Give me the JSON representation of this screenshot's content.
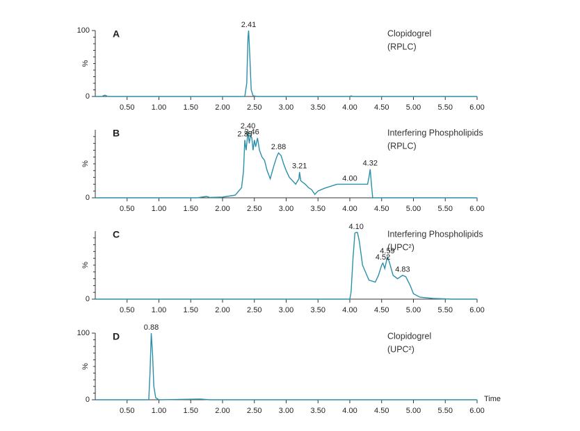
{
  "chart_data": [
    {
      "type": "line",
      "panel_label": "A",
      "title": [
        "Clopidogrel",
        "(RPLC)"
      ],
      "ylabel": "%",
      "color": "#2a8fa8",
      "xlim": [
        0,
        6
      ],
      "ylim": [
        0,
        100
      ],
      "yticks": [
        0,
        100
      ],
      "xticks": [
        {
          "value": 0.5,
          "label": "0.50"
        },
        {
          "value": 1,
          "label": "1.00"
        },
        {
          "value": 1.5,
          "label": "1.50"
        },
        {
          "value": 2,
          "label": "2.00"
        },
        {
          "value": 2.5,
          "label": "2.50"
        },
        {
          "value": 3,
          "label": "3.00"
        },
        {
          "value": 3.5,
          "label": "3.50"
        },
        {
          "value": 4,
          "label": "4.00"
        },
        {
          "value": 4.5,
          "label": "4.50"
        },
        {
          "value": 5,
          "label": "5.00"
        },
        {
          "value": 5.5,
          "label": "5.50"
        },
        {
          "value": 6,
          "label": "6.00"
        }
      ],
      "x": [
        0,
        0.1,
        0.15,
        0.2,
        1.0,
        2.0,
        2.35,
        2.38,
        2.4,
        2.41,
        2.43,
        2.45,
        2.48,
        2.55,
        3.0,
        3.5,
        4.0,
        4.02,
        4.05,
        5.0,
        6.0
      ],
      "values": [
        0,
        0,
        2,
        0,
        0,
        0,
        0,
        20,
        90,
        100,
        60,
        10,
        1,
        0,
        0,
        0,
        0,
        1,
        0,
        0,
        0
      ],
      "annotations": [
        {
          "x": 2.41,
          "y": 100,
          "text": "2.41"
        }
      ]
    },
    {
      "type": "line",
      "panel_label": "B",
      "title": [
        "Interfering Phospholipids",
        "(RPLC)"
      ],
      "ylabel": "%",
      "color": "#2a8fa8",
      "xlim": [
        0,
        6
      ],
      "ylim": [
        0,
        100
      ],
      "yticks": [
        0
      ],
      "xticks": [
        {
          "value": 0.5,
          "label": "0.50"
        },
        {
          "value": 1,
          "label": "1.00"
        },
        {
          "value": 1.5,
          "label": "1.50"
        },
        {
          "value": 2,
          "label": "2.00"
        },
        {
          "value": 2.5,
          "label": "2.50"
        },
        {
          "value": 3,
          "label": "3.00"
        },
        {
          "value": 3.5,
          "label": "3.50"
        },
        {
          "value": 4,
          "label": "4.00"
        },
        {
          "value": 4.5,
          "label": "4.50"
        },
        {
          "value": 5,
          "label": "5.00"
        },
        {
          "value": 5.5,
          "label": "5.50"
        },
        {
          "value": 6,
          "label": "6.00"
        }
      ],
      "x": [
        0,
        1.6,
        1.75,
        1.8,
        2.0,
        2.2,
        2.3,
        2.33,
        2.35,
        2.37,
        2.4,
        2.42,
        2.44,
        2.46,
        2.48,
        2.5,
        2.52,
        2.55,
        2.58,
        2.62,
        2.66,
        2.7,
        2.75,
        2.8,
        2.85,
        2.88,
        2.92,
        2.96,
        3.0,
        3.05,
        3.1,
        3.15,
        3.2,
        3.21,
        3.23,
        3.3,
        3.35,
        3.4,
        3.45,
        3.5,
        3.6,
        3.8,
        4.0,
        4.2,
        4.28,
        4.3,
        4.32,
        4.34,
        4.36,
        6.0
      ],
      "values": [
        0,
        0,
        2,
        0.5,
        1,
        4,
        15,
        40,
        85,
        70,
        97,
        80,
        92,
        88,
        70,
        85,
        75,
        88,
        70,
        60,
        55,
        40,
        28,
        45,
        60,
        66,
        62,
        50,
        40,
        30,
        25,
        20,
        28,
        38,
        25,
        20,
        15,
        12,
        5,
        10,
        14,
        20,
        20,
        20,
        20,
        30,
        42,
        20,
        0,
        0
      ],
      "annotations": [
        {
          "x": 2.35,
          "y": 85,
          "text": "2.35"
        },
        {
          "x": 2.4,
          "y": 97,
          "text": "2.40"
        },
        {
          "x": 2.46,
          "y": 88,
          "text": "2.46"
        },
        {
          "x": 2.88,
          "y": 66,
          "text": "2.88"
        },
        {
          "x": 3.21,
          "y": 38,
          "text": "3.21"
        },
        {
          "x": 4.0,
          "y": 20,
          "text": "4.00"
        },
        {
          "x": 4.32,
          "y": 42,
          "text": "4.32"
        }
      ]
    },
    {
      "type": "line",
      "panel_label": "C",
      "title": [
        "Interfering Phospholipids",
        "(UPC²)"
      ],
      "ylabel": "%",
      "color": "#2a8fa8",
      "xlim": [
        0,
        6
      ],
      "ylim": [
        0,
        100
      ],
      "yticks": [
        0
      ],
      "xticks": [
        {
          "value": 0.5,
          "label": "0.50"
        },
        {
          "value": 1,
          "label": "1.00"
        },
        {
          "value": 1.5,
          "label": "1.50"
        },
        {
          "value": 2,
          "label": "2.00"
        },
        {
          "value": 2.5,
          "label": "2.50"
        },
        {
          "value": 3,
          "label": "3.00"
        },
        {
          "value": 3.5,
          "label": "3.50"
        },
        {
          "value": 4,
          "label": "4.00"
        },
        {
          "value": 4.5,
          "label": "4.50"
        },
        {
          "value": 5,
          "label": "5.00"
        },
        {
          "value": 5.5,
          "label": "5.50"
        },
        {
          "value": 6,
          "label": "6.00"
        }
      ],
      "x": [
        0,
        4.0,
        4.02,
        4.05,
        4.08,
        4.1,
        4.12,
        4.15,
        4.2,
        4.3,
        4.4,
        4.45,
        4.5,
        4.52,
        4.55,
        4.59,
        4.62,
        4.68,
        4.75,
        4.83,
        4.88,
        4.95,
        5.0,
        5.1,
        5.3,
        5.6,
        6.0
      ],
      "values": [
        0,
        0,
        10,
        60,
        97,
        98,
        98,
        85,
        50,
        28,
        25,
        35,
        50,
        53,
        45,
        62,
        55,
        35,
        30,
        35,
        33,
        20,
        8,
        3,
        1,
        0,
        0
      ],
      "annotations": [
        {
          "x": 4.1,
          "y": 98,
          "text": "4.10"
        },
        {
          "x": 4.52,
          "y": 53,
          "text": "4.52"
        },
        {
          "x": 4.59,
          "y": 62,
          "text": "4.59"
        },
        {
          "x": 4.83,
          "y": 35,
          "text": "4.83"
        }
      ]
    },
    {
      "type": "line",
      "panel_label": "D",
      "title": [
        "Clopidogrel",
        "(UPC²)"
      ],
      "ylabel": "%",
      "xlabel": "Time",
      "color": "#2a8fa8",
      "xlim": [
        0,
        6
      ],
      "ylim": [
        0,
        100
      ],
      "yticks": [
        0,
        100
      ],
      "xticks": [
        {
          "value": 0.5,
          "label": "0.50"
        },
        {
          "value": 1,
          "label": "1.00"
        },
        {
          "value": 1.5,
          "label": "1.50"
        },
        {
          "value": 2,
          "label": "2.00"
        },
        {
          "value": 2.5,
          "label": "2.50"
        },
        {
          "value": 3,
          "label": "3.00"
        },
        {
          "value": 3.5,
          "label": "3.50"
        },
        {
          "value": 4,
          "label": "4.00"
        },
        {
          "value": 4.5,
          "label": "4.50"
        },
        {
          "value": 5,
          "label": "5.00"
        },
        {
          "value": 5.5,
          "label": "5.50"
        },
        {
          "value": 6,
          "label": "6.00"
        }
      ],
      "x": [
        0,
        0.84,
        0.86,
        0.88,
        0.9,
        0.92,
        0.95,
        1.0,
        1.65,
        1.8,
        6.0
      ],
      "values": [
        0,
        0,
        40,
        100,
        70,
        20,
        3,
        0,
        1,
        0,
        0
      ],
      "annotations": [
        {
          "x": 0.88,
          "y": 100,
          "text": "0.88"
        }
      ]
    }
  ]
}
